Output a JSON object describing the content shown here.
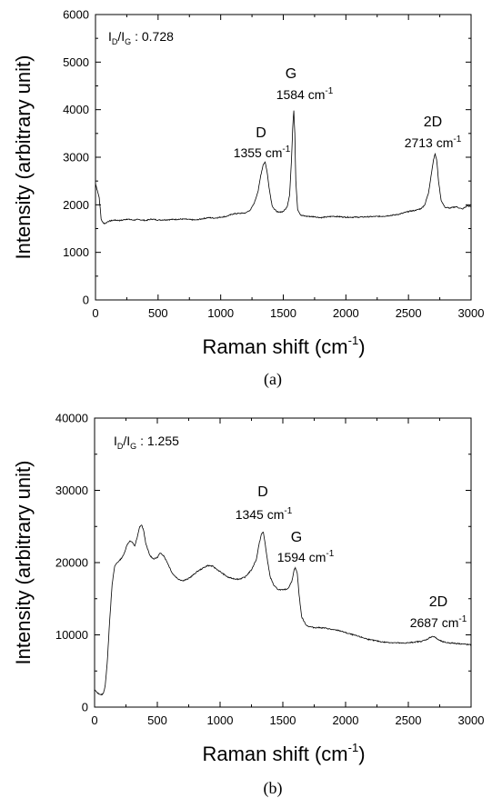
{
  "chart_data": [
    {
      "id": "a",
      "type": "line",
      "caption": "(a)",
      "xlabel_main": "Raman shift (cm",
      "xlabel_sup": "-1",
      "xlabel_end": ")",
      "ylabel": "Intensity (arbitrary unit)",
      "xlim": [
        0,
        3000
      ],
      "ylim": [
        0,
        6000
      ],
      "x_ticks": [
        0,
        500,
        1000,
        1500,
        2000,
        2500,
        3000
      ],
      "y_ticks": [
        0,
        1000,
        2000,
        3000,
        4000,
        5000,
        6000
      ],
      "ratio": {
        "i": "I",
        "d": "D",
        "slash": "/I",
        "g": "G",
        "value": " : 0.728"
      },
      "peaks": [
        {
          "name": "D",
          "pos": "1355",
          "unit": " cm",
          "sup": "-1",
          "x": 1355,
          "y": 2900
        },
        {
          "name": "G",
          "pos": "1584",
          "unit": " cm",
          "sup": "-1",
          "x": 1584,
          "y": 3980
        },
        {
          "name": "2D",
          "pos": "2713",
          "unit": " cm",
          "sup": "-1",
          "x": 2713,
          "y": 3070
        }
      ],
      "series": [
        {
          "x": [
            0,
            15,
            30,
            45,
            60,
            80,
            100,
            150,
            200,
            250,
            300,
            350,
            400,
            450,
            500,
            600,
            700,
            800,
            900,
            950,
            1000,
            1050,
            1100,
            1150,
            1200,
            1240,
            1270,
            1300,
            1320,
            1340,
            1355,
            1370,
            1390,
            1410,
            1430,
            1460,
            1500,
            1530,
            1550,
            1565,
            1575,
            1584,
            1592,
            1600,
            1615,
            1640,
            1680,
            1750,
            1800,
            1900,
            2000,
            2100,
            2200,
            2300,
            2400,
            2450,
            2500,
            2550,
            2600,
            2630,
            2660,
            2680,
            2700,
            2713,
            2725,
            2740,
            2760,
            2790,
            2830,
            2880,
            2930,
            2970,
            3000
          ],
          "y": [
            2450,
            2300,
            2150,
            1700,
            1620,
            1610,
            1650,
            1680,
            1670,
            1700,
            1680,
            1690,
            1670,
            1700,
            1680,
            1690,
            1700,
            1680,
            1730,
            1720,
            1740,
            1760,
            1810,
            1820,
            1830,
            1900,
            2050,
            2300,
            2620,
            2850,
            2900,
            2700,
            2300,
            1990,
            1900,
            1840,
            1860,
            1950,
            2200,
            2900,
            3600,
            3980,
            3500,
            2500,
            1900,
            1780,
            1760,
            1750,
            1730,
            1760,
            1740,
            1740,
            1750,
            1760,
            1790,
            1820,
            1860,
            1880,
            1920,
            2000,
            2250,
            2600,
            2950,
            3070,
            2950,
            2500,
            2100,
            1950,
            1930,
            1960,
            1910,
            1980,
            1960
          ]
        }
      ]
    },
    {
      "id": "b",
      "type": "line",
      "caption": "(b)",
      "xlabel_main": "Raman shift (cm",
      "xlabel_sup": "-1",
      "xlabel_end": ")",
      "ylabel": "Intensity (arbitrary unit)",
      "xlim": [
        0,
        3000
      ],
      "ylim": [
        0,
        40000
      ],
      "x_ticks": [
        0,
        500,
        1000,
        1500,
        2000,
        2500,
        3000
      ],
      "y_ticks": [
        0,
        10000,
        20000,
        30000,
        40000
      ],
      "ratio": {
        "i": "I",
        "d": "D",
        "slash": "/I",
        "g": "G",
        "value": " : 1.255"
      },
      "peaks": [
        {
          "name": "D",
          "pos": "1345",
          "unit": " cm",
          "sup": "-1",
          "x": 1345,
          "y": 24200
        },
        {
          "name": "G",
          "pos": "1594",
          "unit": " cm",
          "sup": "-1",
          "x": 1594,
          "y": 19300
        },
        {
          "name": "2D",
          "pos": "2687",
          "unit": " cm",
          "sup": "-1",
          "x": 2687,
          "y": 9800
        }
      ],
      "series": [
        {
          "x": [
            0,
            20,
            40,
            55,
            70,
            85,
            100,
            120,
            140,
            160,
            180,
            200,
            230,
            260,
            280,
            300,
            320,
            340,
            360,
            375,
            390,
            410,
            440,
            470,
            500,
            520,
            550,
            580,
            620,
            660,
            700,
            740,
            780,
            820,
            860,
            900,
            940,
            980,
            1020,
            1060,
            1100,
            1150,
            1200,
            1250,
            1290,
            1310,
            1330,
            1345,
            1360,
            1380,
            1400,
            1430,
            1460,
            1500,
            1540,
            1570,
            1590,
            1600,
            1615,
            1630,
            1650,
            1680,
            1700,
            1750,
            1800,
            1850,
            1900,
            1950,
            2000,
            2100,
            2200,
            2300,
            2400,
            2450,
            2500,
            2550,
            2600,
            2640,
            2670,
            2690,
            2710,
            2740,
            2780,
            2820,
            2860,
            2900,
            2950,
            3000
          ],
          "y": [
            2400,
            2000,
            1800,
            1700,
            1900,
            3000,
            6000,
            12000,
            17000,
            19500,
            20000,
            20300,
            21000,
            22500,
            23000,
            22800,
            22300,
            23500,
            25000,
            25200,
            24500,
            22500,
            21000,
            20500,
            20700,
            21300,
            21000,
            20000,
            18500,
            17800,
            17500,
            17700,
            18200,
            18800,
            19200,
            19600,
            19500,
            19000,
            18500,
            18000,
            17800,
            17700,
            18000,
            19000,
            20500,
            22500,
            24000,
            24200,
            22500,
            20000,
            18000,
            16800,
            16300,
            16200,
            16400,
            17300,
            19000,
            19300,
            18500,
            15500,
            12500,
            11500,
            11200,
            11000,
            11000,
            10900,
            10700,
            10600,
            10300,
            9800,
            9300,
            9000,
            8900,
            8850,
            8900,
            9000,
            9100,
            9300,
            9600,
            9800,
            9700,
            9300,
            9000,
            8900,
            8850,
            8800,
            8700,
            8600
          ]
        }
      ]
    }
  ]
}
